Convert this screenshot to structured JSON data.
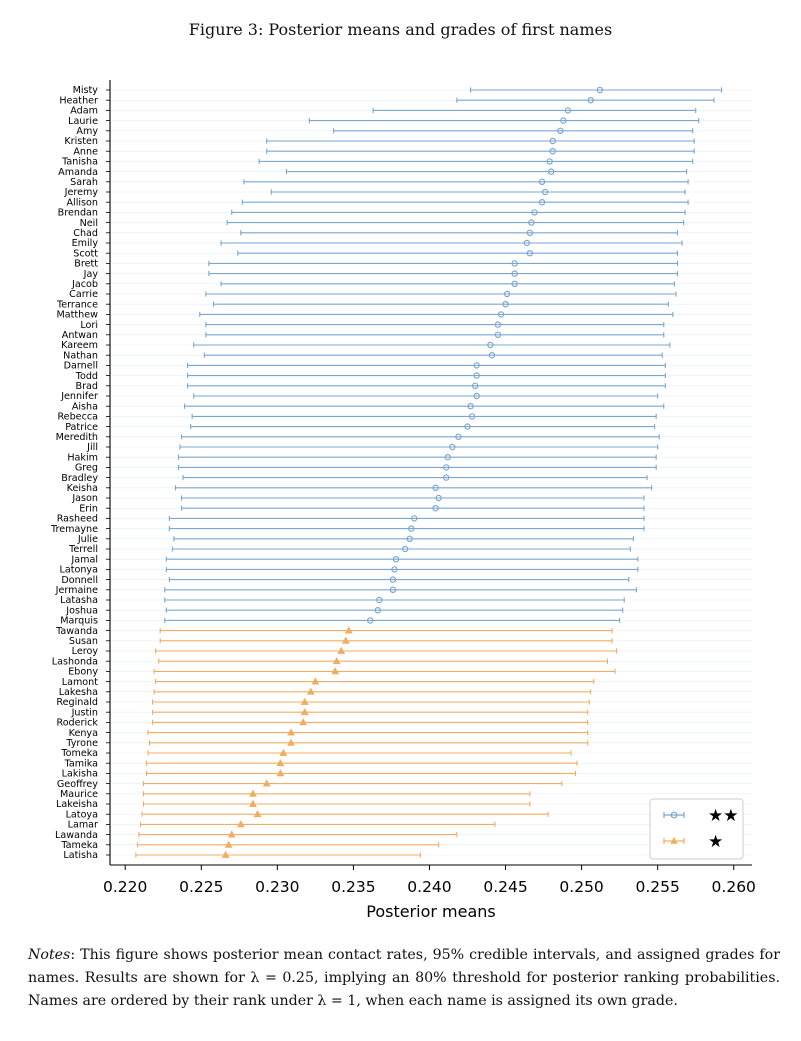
{
  "figure": {
    "title": "Figure 3: Posterior means and grades of first names",
    "notes_lead": "Notes",
    "notes_body": ": This figure shows posterior mean contact rates, 95% credible intervals, and assigned grades for names. Results are shown for λ = 0.25, implying an 80% threshold for posterior ranking probabilities. Names are ordered by their rank under λ = 1, when each name is assigned its own grade."
  },
  "colors": {
    "two_star": "#7aa7cf",
    "one_star": "#f0ad62",
    "axis": "#000000"
  },
  "chart_data": {
    "type": "errorbar",
    "xlabel": "Posterior means",
    "ylabel": "",
    "xlim": [
      0.219,
      0.2612
    ],
    "xticks": [
      0.22,
      0.225,
      0.23,
      0.235,
      0.24,
      0.245,
      0.25,
      0.255,
      0.26
    ],
    "xtick_labels": [
      "0.220",
      "0.225",
      "0.230",
      "0.235",
      "0.240",
      "0.245",
      "0.250",
      "0.255",
      "0.260"
    ],
    "legend": {
      "placement": "bottom-right",
      "entries": [
        {
          "grade": 2,
          "label": "★★"
        },
        {
          "grade": 1,
          "label": "★"
        }
      ]
    },
    "series": [
      {
        "grade": 2,
        "label": "★★",
        "marker": "circle",
        "points": [
          {
            "name": "Misty",
            "mean": 0.2512,
            "lo": 0.2427,
            "hi": 0.2592
          },
          {
            "name": "Heather",
            "mean": 0.2506,
            "lo": 0.2418,
            "hi": 0.2587
          },
          {
            "name": "Adam",
            "mean": 0.2491,
            "lo": 0.2363,
            "hi": 0.2575
          },
          {
            "name": "Laurie",
            "mean": 0.2488,
            "lo": 0.2321,
            "hi": 0.2577
          },
          {
            "name": "Amy",
            "mean": 0.2486,
            "lo": 0.2337,
            "hi": 0.2573
          },
          {
            "name": "Kristen",
            "mean": 0.2481,
            "lo": 0.2293,
            "hi": 0.2574
          },
          {
            "name": "Anne",
            "mean": 0.2481,
            "lo": 0.2293,
            "hi": 0.2574
          },
          {
            "name": "Tanisha",
            "mean": 0.2479,
            "lo": 0.2288,
            "hi": 0.2573
          },
          {
            "name": "Amanda",
            "mean": 0.248,
            "lo": 0.2306,
            "hi": 0.2569
          },
          {
            "name": "Sarah",
            "mean": 0.2474,
            "lo": 0.2278,
            "hi": 0.257
          },
          {
            "name": "Jeremy",
            "mean": 0.2476,
            "lo": 0.2296,
            "hi": 0.2568
          },
          {
            "name": "Allison",
            "mean": 0.2474,
            "lo": 0.2277,
            "hi": 0.257
          },
          {
            "name": "Brendan",
            "mean": 0.2469,
            "lo": 0.227,
            "hi": 0.2568
          },
          {
            "name": "Neil",
            "mean": 0.2467,
            "lo": 0.2267,
            "hi": 0.2567
          },
          {
            "name": "Chad",
            "mean": 0.2466,
            "lo": 0.2276,
            "hi": 0.2563
          },
          {
            "name": "Emily",
            "mean": 0.2464,
            "lo": 0.2263,
            "hi": 0.2566
          },
          {
            "name": "Scott",
            "mean": 0.2466,
            "lo": 0.2274,
            "hi": 0.2563
          },
          {
            "name": "Brett",
            "mean": 0.2456,
            "lo": 0.2255,
            "hi": 0.2563
          },
          {
            "name": "Jay",
            "mean": 0.2456,
            "lo": 0.2255,
            "hi": 0.2563
          },
          {
            "name": "Jacob",
            "mean": 0.2456,
            "lo": 0.2263,
            "hi": 0.2561
          },
          {
            "name": "Carrie",
            "mean": 0.2451,
            "lo": 0.2253,
            "hi": 0.2562
          },
          {
            "name": "Terrance",
            "mean": 0.245,
            "lo": 0.2258,
            "hi": 0.2557
          },
          {
            "name": "Matthew",
            "mean": 0.2447,
            "lo": 0.2249,
            "hi": 0.256
          },
          {
            "name": "Lori",
            "mean": 0.2445,
            "lo": 0.2253,
            "hi": 0.2554
          },
          {
            "name": "Antwan",
            "mean": 0.2445,
            "lo": 0.2253,
            "hi": 0.2554
          },
          {
            "name": "Kareem",
            "mean": 0.244,
            "lo": 0.2245,
            "hi": 0.2558
          },
          {
            "name": "Nathan",
            "mean": 0.2441,
            "lo": 0.2252,
            "hi": 0.2553
          },
          {
            "name": "Darnell",
            "mean": 0.2431,
            "lo": 0.2241,
            "hi": 0.2555
          },
          {
            "name": "Todd",
            "mean": 0.2431,
            "lo": 0.2241,
            "hi": 0.2555
          },
          {
            "name": "Brad",
            "mean": 0.243,
            "lo": 0.2241,
            "hi": 0.2555
          },
          {
            "name": "Jennifer",
            "mean": 0.2431,
            "lo": 0.2245,
            "hi": 0.255
          },
          {
            "name": "Aisha",
            "mean": 0.2427,
            "lo": 0.2239,
            "hi": 0.2554
          },
          {
            "name": "Rebecca",
            "mean": 0.2428,
            "lo": 0.2244,
            "hi": 0.2549
          },
          {
            "name": "Patrice",
            "mean": 0.2425,
            "lo": 0.2243,
            "hi": 0.2548
          },
          {
            "name": "Meredith",
            "mean": 0.2419,
            "lo": 0.2237,
            "hi": 0.2551
          },
          {
            "name": "Jill",
            "mean": 0.2415,
            "lo": 0.2236,
            "hi": 0.255
          },
          {
            "name": "Hakim",
            "mean": 0.2412,
            "lo": 0.2235,
            "hi": 0.2549
          },
          {
            "name": "Greg",
            "mean": 0.2411,
            "lo": 0.2235,
            "hi": 0.2549
          },
          {
            "name": "Bradley",
            "mean": 0.2411,
            "lo": 0.2238,
            "hi": 0.2543
          },
          {
            "name": "Keisha",
            "mean": 0.2404,
            "lo": 0.2233,
            "hi": 0.2546
          },
          {
            "name": "Jason",
            "mean": 0.2406,
            "lo": 0.2237,
            "hi": 0.2541
          },
          {
            "name": "Erin",
            "mean": 0.2404,
            "lo": 0.2237,
            "hi": 0.2541
          },
          {
            "name": "Rasheed",
            "mean": 0.239,
            "lo": 0.2229,
            "hi": 0.2541
          },
          {
            "name": "Tremayne",
            "mean": 0.2388,
            "lo": 0.2229,
            "hi": 0.2541
          },
          {
            "name": "Julie",
            "mean": 0.2387,
            "lo": 0.2232,
            "hi": 0.2534
          },
          {
            "name": "Terrell",
            "mean": 0.2384,
            "lo": 0.2231,
            "hi": 0.2532
          },
          {
            "name": "Jamal",
            "mean": 0.2378,
            "lo": 0.2227,
            "hi": 0.2537
          },
          {
            "name": "Latonya",
            "mean": 0.2377,
            "lo": 0.2227,
            "hi": 0.2537
          },
          {
            "name": "Donnell",
            "mean": 0.2376,
            "lo": 0.2229,
            "hi": 0.2531
          },
          {
            "name": "Jermaine",
            "mean": 0.2376,
            "lo": 0.2226,
            "hi": 0.2536
          },
          {
            "name": "Latasha",
            "mean": 0.2367,
            "lo": 0.2226,
            "hi": 0.2528
          },
          {
            "name": "Joshua",
            "mean": 0.2366,
            "lo": 0.2227,
            "hi": 0.2527
          },
          {
            "name": "Marquis",
            "mean": 0.2361,
            "lo": 0.2226,
            "hi": 0.2525
          }
        ]
      },
      {
        "grade": 1,
        "label": "★",
        "marker": "triangle",
        "points": [
          {
            "name": "Tawanda",
            "mean": 0.2347,
            "lo": 0.2223,
            "hi": 0.252
          },
          {
            "name": "Susan",
            "mean": 0.2345,
            "lo": 0.2223,
            "hi": 0.252
          },
          {
            "name": "Leroy",
            "mean": 0.2342,
            "lo": 0.222,
            "hi": 0.2523
          },
          {
            "name": "Lashonda",
            "mean": 0.2339,
            "lo": 0.2222,
            "hi": 0.2517
          },
          {
            "name": "Ebony",
            "mean": 0.2338,
            "lo": 0.2219,
            "hi": 0.2522
          },
          {
            "name": "Lamont",
            "mean": 0.2325,
            "lo": 0.222,
            "hi": 0.2508
          },
          {
            "name": "Lakesha",
            "mean": 0.2322,
            "lo": 0.2219,
            "hi": 0.2506
          },
          {
            "name": "Reginald",
            "mean": 0.2318,
            "lo": 0.2218,
            "hi": 0.2505
          },
          {
            "name": "Justin",
            "mean": 0.2318,
            "lo": 0.2218,
            "hi": 0.2504
          },
          {
            "name": "Roderick",
            "mean": 0.2317,
            "lo": 0.2218,
            "hi": 0.2504
          },
          {
            "name": "Kenya",
            "mean": 0.2309,
            "lo": 0.2215,
            "hi": 0.2504
          },
          {
            "name": "Tyrone",
            "mean": 0.2309,
            "lo": 0.2216,
            "hi": 0.2504
          },
          {
            "name": "Tomeka",
            "mean": 0.2304,
            "lo": 0.2215,
            "hi": 0.2493
          },
          {
            "name": "Tamika",
            "mean": 0.2302,
            "lo": 0.2214,
            "hi": 0.2497
          },
          {
            "name": "Lakisha",
            "mean": 0.2302,
            "lo": 0.2214,
            "hi": 0.2496
          },
          {
            "name": "Geoffrey",
            "mean": 0.2293,
            "lo": 0.2212,
            "hi": 0.2487
          },
          {
            "name": "Maurice",
            "mean": 0.2284,
            "lo": 0.2212,
            "hi": 0.2466
          },
          {
            "name": "Lakeisha",
            "mean": 0.2284,
            "lo": 0.2212,
            "hi": 0.2466
          },
          {
            "name": "Latoya",
            "mean": 0.2287,
            "lo": 0.2211,
            "hi": 0.2478
          },
          {
            "name": "Lamar",
            "mean": 0.2276,
            "lo": 0.221,
            "hi": 0.2443
          },
          {
            "name": "Lawanda",
            "mean": 0.227,
            "lo": 0.2209,
            "hi": 0.2418
          },
          {
            "name": "Tameka",
            "mean": 0.2268,
            "lo": 0.2208,
            "hi": 0.2406
          },
          {
            "name": "Latisha",
            "mean": 0.2266,
            "lo": 0.2207,
            "hi": 0.2394
          }
        ]
      }
    ]
  }
}
